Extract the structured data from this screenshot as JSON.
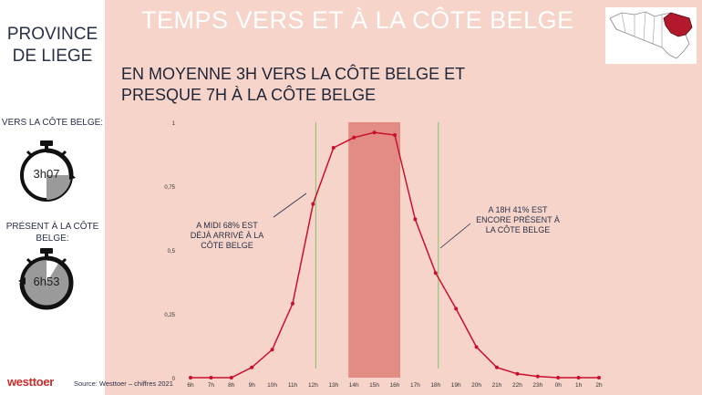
{
  "sidebar": {
    "province": "PROVINCE DE LIEGE",
    "label_toward": "VERS LA CÔTE BELGE:",
    "value_toward": "3h07",
    "label_present": "PRÉSENT À LA CÔTE BELGE:",
    "value_present": "6h53"
  },
  "header": {
    "title": "TEMPS VERS ET À LA CÔTE BELGE",
    "subtitle": "EN MOYENNE 3H VERS LA CÔTE BELGE ET PRESQUE 7H À LA CÔTE BELGE"
  },
  "map": {
    "icon": "belgium-map-liege-icon",
    "highlight_color": "#b3192d"
  },
  "annotations": {
    "noon": "A MIDI 68% EST DÉJÀ ARRIVÉ À LA CÔTE BELGE",
    "evening": "A 18H 41% EST ENCORE PRÉSENT À LA CÔTE BELGE"
  },
  "footer": {
    "logo": "westtoer",
    "source": "Source: Westtoer – chiffres 2021"
  },
  "colors": {
    "background": "#f6d4c9",
    "line": "#c8102e",
    "band": "#e38b85",
    "marker_line": "#7cc46a"
  },
  "chart_data": {
    "type": "line",
    "title": "",
    "xlabel": "",
    "ylabel": "",
    "categories": [
      "6h",
      "7h",
      "8h",
      "9h",
      "10h",
      "11h",
      "12h",
      "13h",
      "14h",
      "15h",
      "16h",
      "17h",
      "18h",
      "19h",
      "20h",
      "21h",
      "22h",
      "23h",
      "0h",
      "1h",
      "2h"
    ],
    "values": [
      0,
      0,
      0,
      0.04,
      0.11,
      0.29,
      0.68,
      0.9,
      0.94,
      0.96,
      0.95,
      0.62,
      0.41,
      0.27,
      0.12,
      0.04,
      0.015,
      0.005,
      0,
      0,
      0
    ],
    "ylim": [
      0,
      1
    ],
    "yticks": [
      0,
      0.25,
      0.5,
      0.75,
      1
    ],
    "ytick_labels": [
      "0",
      "0,25",
      "0,5",
      "0,75",
      "1"
    ],
    "grid": false,
    "legend": "none",
    "highlight_band": [
      "14h",
      "16h"
    ],
    "vertical_markers": [
      "12h",
      "18h"
    ]
  }
}
